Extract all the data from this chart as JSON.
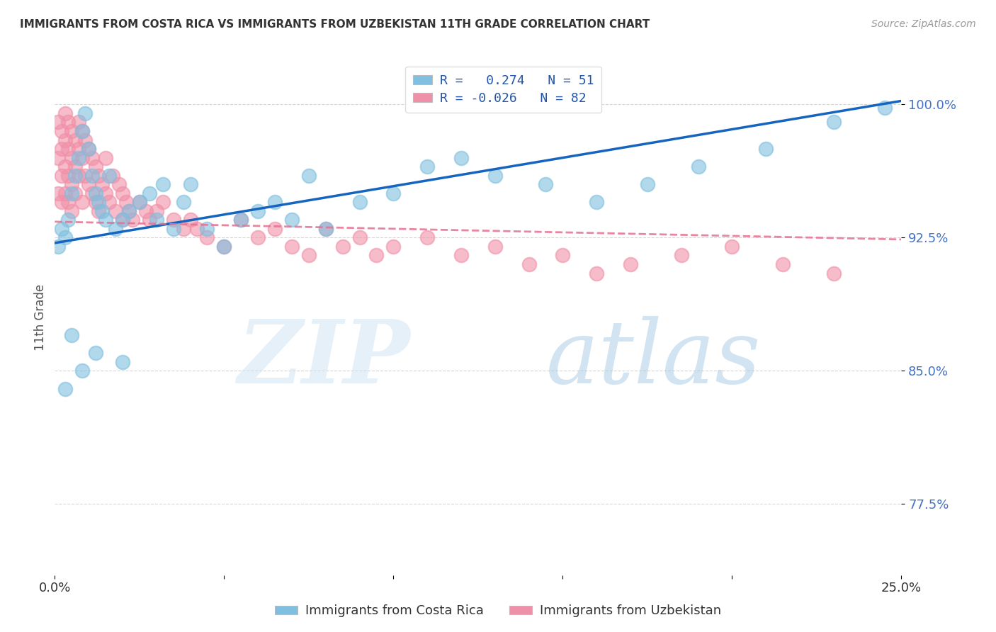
{
  "title": "IMMIGRANTS FROM COSTA RICA VS IMMIGRANTS FROM UZBEKISTAN 11TH GRADE CORRELATION CHART",
  "source": "Source: ZipAtlas.com",
  "ylabel": "11th Grade",
  "ytick_labels": [
    "100.0%",
    "92.5%",
    "85.0%",
    "77.5%"
  ],
  "ytick_values": [
    1.0,
    0.925,
    0.85,
    0.775
  ],
  "xlim": [
    0.0,
    0.25
  ],
  "ylim": [
    0.735,
    1.025
  ],
  "legend_r1": "R =   0.274   N = 51",
  "legend_r2": "R = -0.026   N = 82",
  "color_blue": "#7fbfdf",
  "color_pink": "#f090a8",
  "trendline_blue": "#1565c0",
  "trendline_pink": "#e57090",
  "blue_trendline_x": [
    0.0,
    0.25
  ],
  "blue_trendline_y": [
    0.922,
    1.002
  ],
  "pink_trendline_x": [
    0.0,
    0.25
  ],
  "pink_trendline_y": [
    0.934,
    0.924
  ],
  "blue_scatter_x": [
    0.001,
    0.002,
    0.003,
    0.004,
    0.005,
    0.006,
    0.007,
    0.008,
    0.009,
    0.01,
    0.011,
    0.012,
    0.013,
    0.014,
    0.015,
    0.016,
    0.018,
    0.02,
    0.022,
    0.025,
    0.028,
    0.03,
    0.032,
    0.035,
    0.038,
    0.04,
    0.045,
    0.05,
    0.055,
    0.06,
    0.065,
    0.07,
    0.075,
    0.08,
    0.09,
    0.1,
    0.11,
    0.12,
    0.13,
    0.145,
    0.16,
    0.175,
    0.19,
    0.21,
    0.23,
    0.245,
    0.003,
    0.005,
    0.008,
    0.012,
    0.02
  ],
  "blue_scatter_y": [
    0.92,
    0.93,
    0.925,
    0.935,
    0.95,
    0.96,
    0.97,
    0.985,
    0.995,
    0.975,
    0.96,
    0.95,
    0.945,
    0.94,
    0.935,
    0.96,
    0.93,
    0.935,
    0.94,
    0.945,
    0.95,
    0.935,
    0.955,
    0.93,
    0.945,
    0.955,
    0.93,
    0.92,
    0.935,
    0.94,
    0.945,
    0.935,
    0.96,
    0.93,
    0.945,
    0.95,
    0.965,
    0.97,
    0.96,
    0.955,
    0.945,
    0.955,
    0.965,
    0.975,
    0.99,
    0.998,
    0.84,
    0.87,
    0.85,
    0.86,
    0.855
  ],
  "pink_scatter_x": [
    0.001,
    0.001,
    0.001,
    0.002,
    0.002,
    0.002,
    0.002,
    0.003,
    0.003,
    0.003,
    0.003,
    0.004,
    0.004,
    0.004,
    0.004,
    0.005,
    0.005,
    0.005,
    0.005,
    0.006,
    0.006,
    0.006,
    0.007,
    0.007,
    0.007,
    0.008,
    0.008,
    0.008,
    0.009,
    0.009,
    0.01,
    0.01,
    0.011,
    0.011,
    0.012,
    0.012,
    0.013,
    0.013,
    0.014,
    0.015,
    0.015,
    0.016,
    0.017,
    0.018,
    0.019,
    0.02,
    0.02,
    0.021,
    0.022,
    0.023,
    0.025,
    0.027,
    0.028,
    0.03,
    0.032,
    0.035,
    0.038,
    0.04,
    0.042,
    0.045,
    0.05,
    0.055,
    0.06,
    0.065,
    0.07,
    0.075,
    0.08,
    0.085,
    0.09,
    0.095,
    0.1,
    0.11,
    0.12,
    0.13,
    0.14,
    0.15,
    0.16,
    0.17,
    0.185,
    0.2,
    0.215,
    0.23
  ],
  "pink_scatter_y": [
    0.99,
    0.97,
    0.95,
    0.985,
    0.975,
    0.96,
    0.945,
    0.995,
    0.98,
    0.965,
    0.95,
    0.99,
    0.975,
    0.96,
    0.945,
    0.985,
    0.97,
    0.955,
    0.94,
    0.98,
    0.965,
    0.95,
    0.99,
    0.975,
    0.96,
    0.985,
    0.97,
    0.945,
    0.98,
    0.96,
    0.975,
    0.955,
    0.97,
    0.95,
    0.965,
    0.945,
    0.96,
    0.94,
    0.955,
    0.97,
    0.95,
    0.945,
    0.96,
    0.94,
    0.955,
    0.95,
    0.935,
    0.945,
    0.94,
    0.935,
    0.945,
    0.94,
    0.935,
    0.94,
    0.945,
    0.935,
    0.93,
    0.935,
    0.93,
    0.925,
    0.92,
    0.935,
    0.925,
    0.93,
    0.92,
    0.915,
    0.93,
    0.92,
    0.925,
    0.915,
    0.92,
    0.925,
    0.915,
    0.92,
    0.91,
    0.915,
    0.905,
    0.91,
    0.915,
    0.92,
    0.91,
    0.905
  ],
  "background_color": "#ffffff",
  "grid_color": "#cccccc"
}
